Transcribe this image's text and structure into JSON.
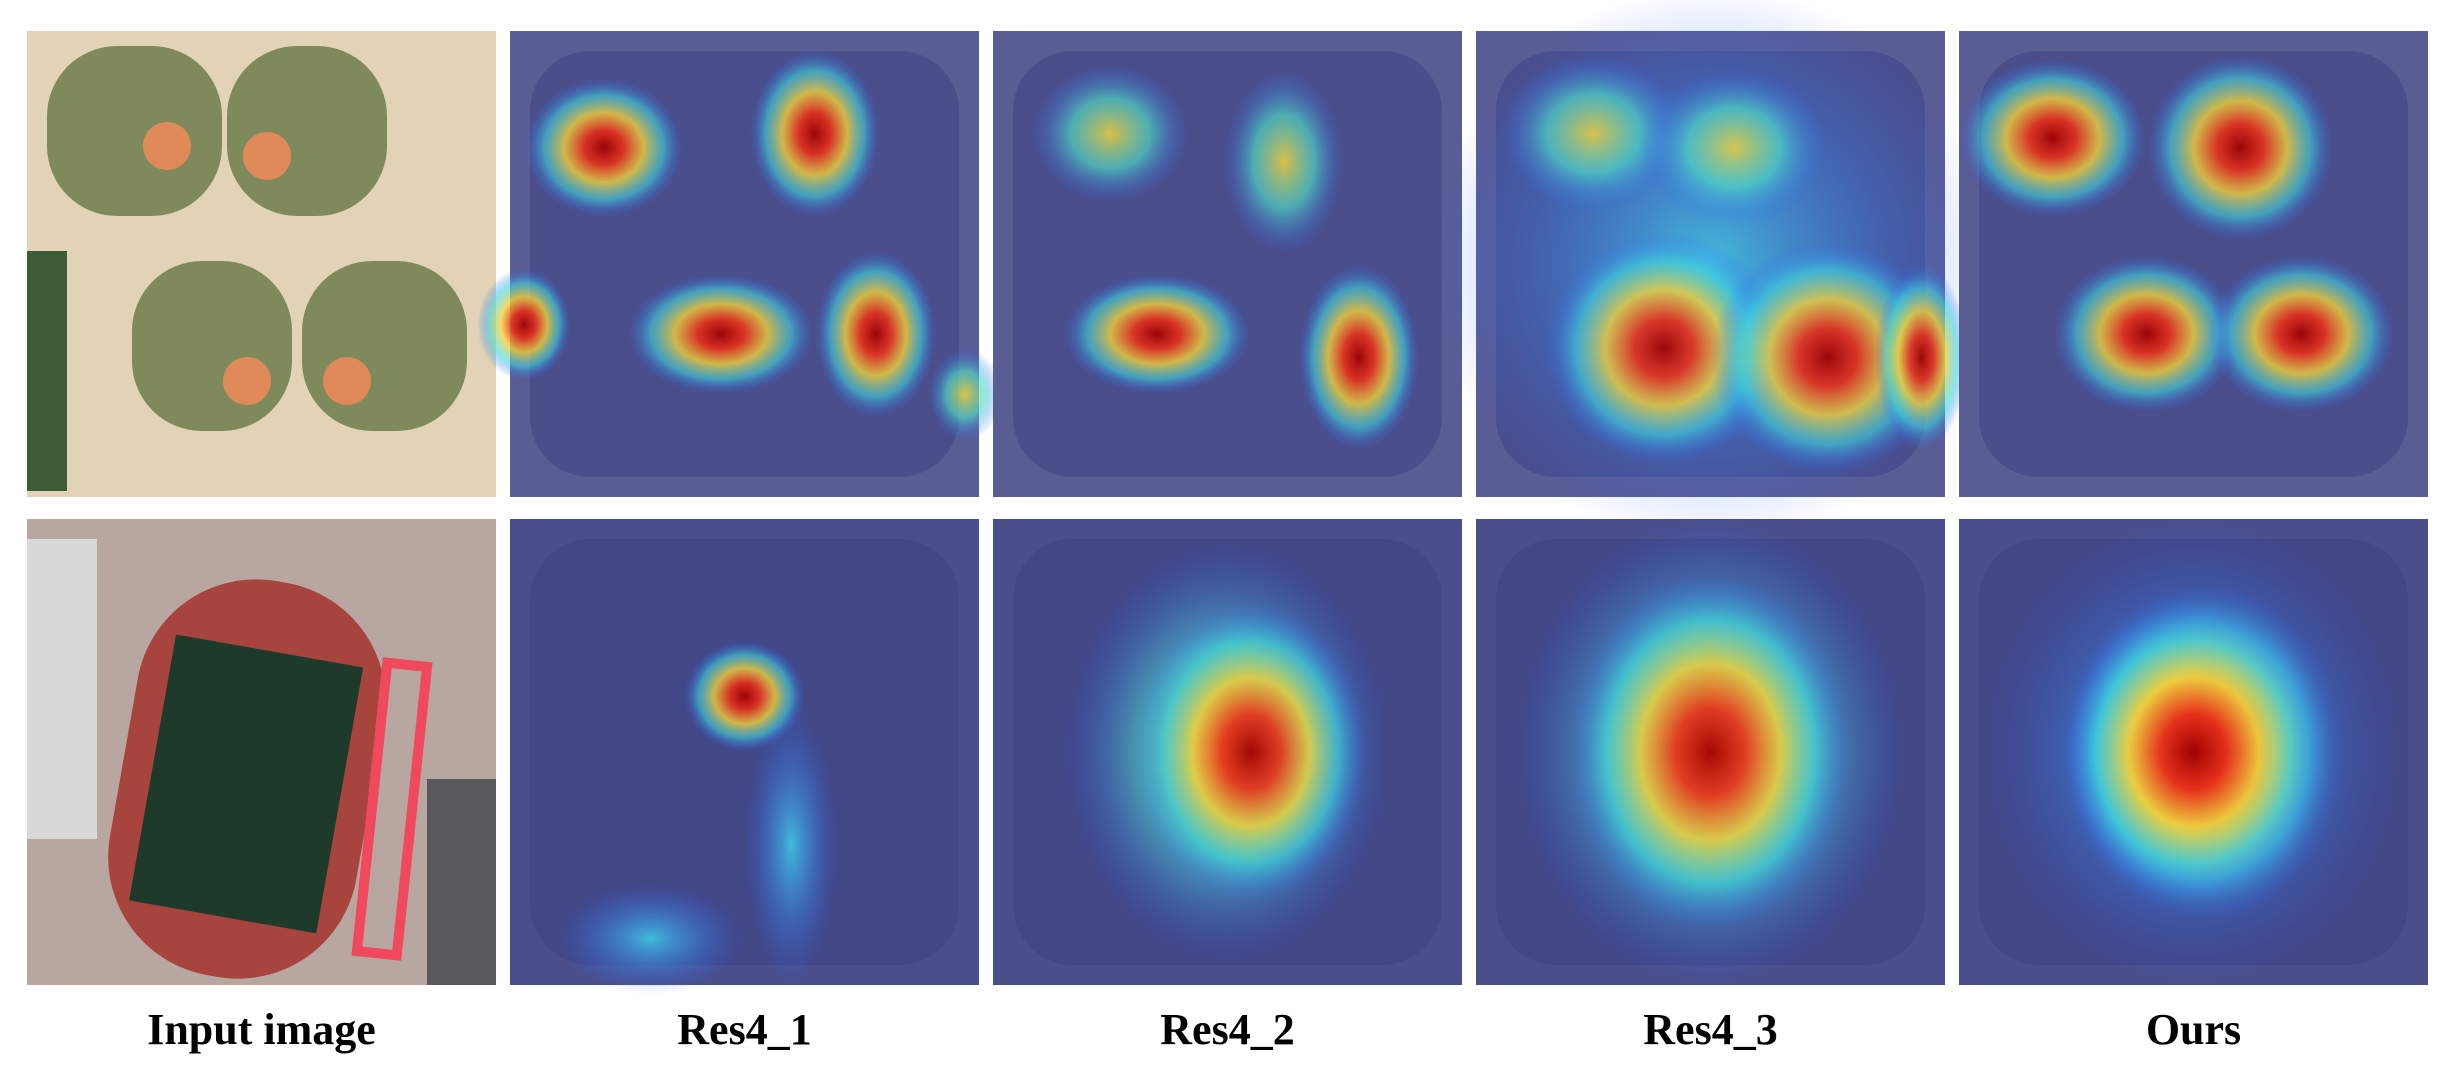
{
  "columns": [
    "Input image",
    "Res4_1",
    "Res4_2",
    "Res4_3",
    "Ours"
  ]
}
